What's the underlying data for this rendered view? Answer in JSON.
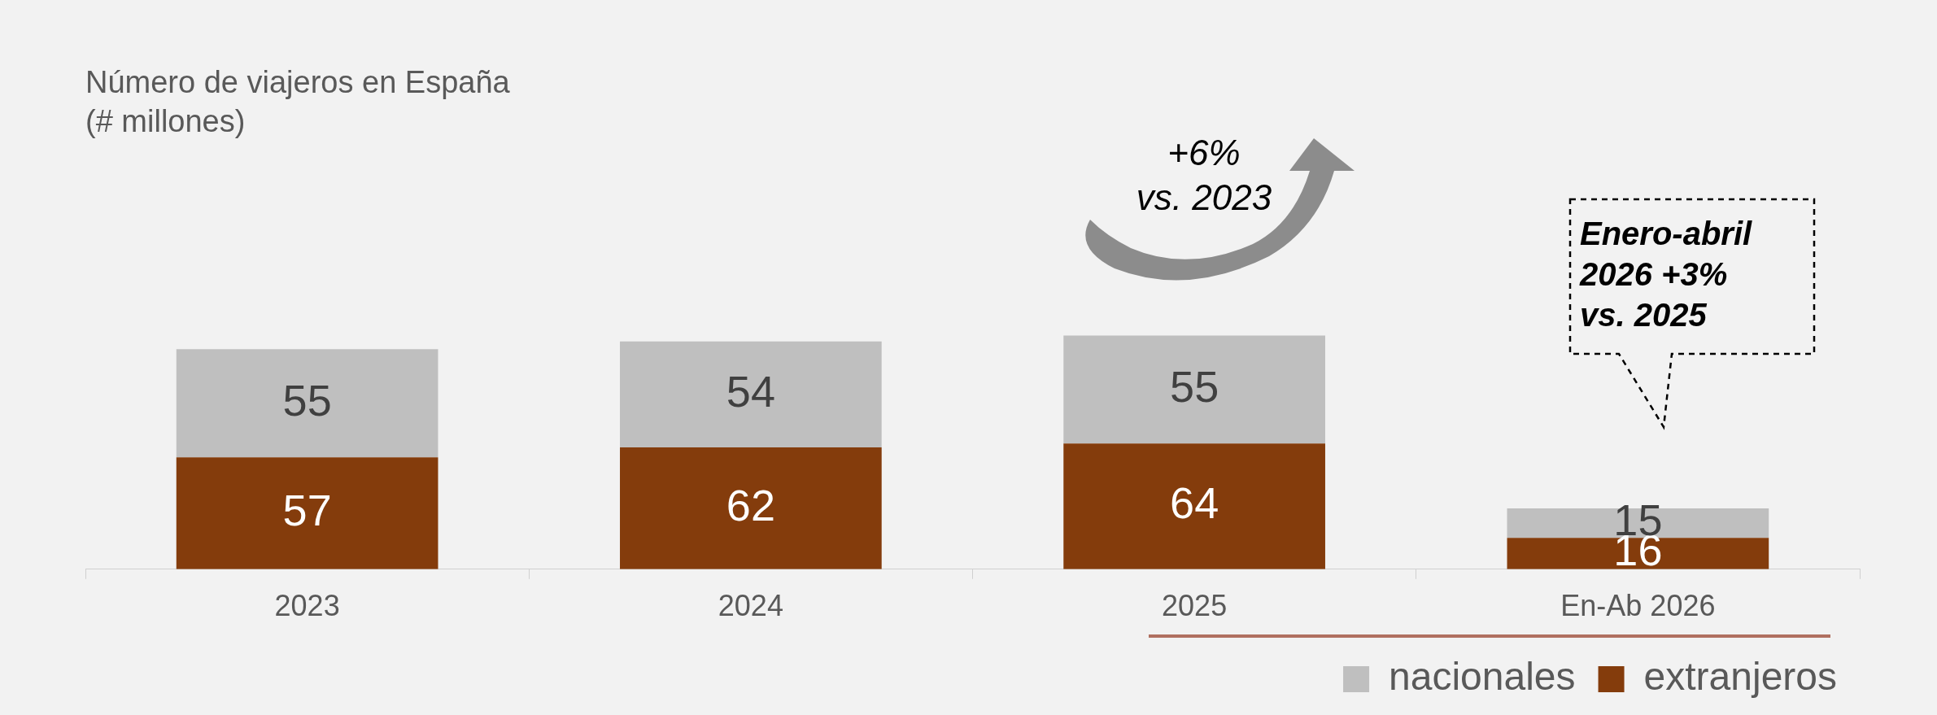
{
  "chart_data": {
    "type": "bar",
    "title": "Número de viajeros en España",
    "subtitle": "(# millones)",
    "categories": [
      "2023",
      "2024",
      "2025",
      "En-Ab 2026"
    ],
    "stacked": true,
    "data_labels": true,
    "legend": "bottom right",
    "grid": false,
    "series": [
      {
        "name": "extranjeros",
        "color": "#843c0c",
        "values": [
          57,
          62,
          64,
          16
        ]
      },
      {
        "name": "nacionales",
        "color": "#bfbfbf",
        "values": [
          55,
          54,
          55,
          15
        ]
      }
    ],
    "annotations": [
      "+6%\nvs. 2023",
      "Enero-abril\n2026 +3%\nvs. 2025"
    ]
  }
}
